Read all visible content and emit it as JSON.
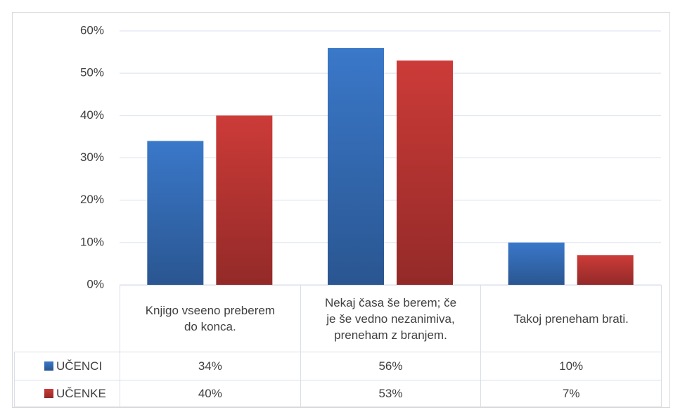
{
  "chart_data": {
    "type": "bar",
    "categories": [
      "Knjigo vseeno preberem do konca.",
      "Nekaj časa še berem; če je še vedno nezanimiva, preneham z branjem.",
      "Takoj preneham brati."
    ],
    "series": [
      {
        "name": "UČENCI",
        "color": "#3a78c9",
        "values": [
          34,
          56,
          10
        ],
        "value_labels": [
          "34%",
          "56%",
          "10%"
        ]
      },
      {
        "name": "UČENKE",
        "color": "#cc3b38",
        "values": [
          40,
          53,
          7
        ],
        "value_labels": [
          "40%",
          "53%",
          "7%"
        ]
      }
    ],
    "ylim": [
      0,
      60
    ],
    "yticks": [
      {
        "value": 0,
        "label": "0%"
      },
      {
        "value": 10,
        "label": "10%"
      },
      {
        "value": 20,
        "label": "20%"
      },
      {
        "value": 30,
        "label": "30%"
      },
      {
        "value": 40,
        "label": "40%"
      },
      {
        "value": 50,
        "label": "50%"
      },
      {
        "value": 60,
        "label": "60%"
      }
    ],
    "grid": true,
    "data_table": true
  }
}
